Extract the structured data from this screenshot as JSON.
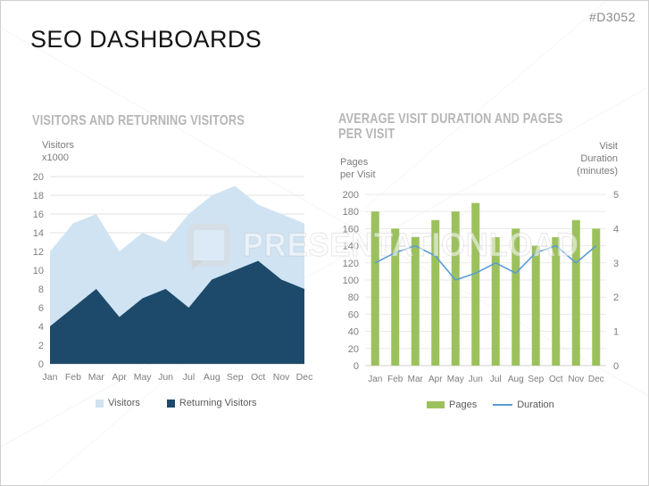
{
  "slide": {
    "code": "#D3052",
    "title": "SEO DASHBOARDS",
    "watermark": "PRESENTATIONLOAD",
    "accent_colors": {
      "light_blue": "#cfe3f3",
      "dark_blue": "#1d4a6a",
      "green": "#9cc15c",
      "line_blue": "#5b9bd5"
    }
  },
  "left_chart": {
    "ylabel_line1": "Visitors",
    "ylabel_line2": "x1000"
  },
  "right_chart": {
    "title_line1": "AVERAGE VISIT DURATION AND PAGES",
    "title_line2": "PER VISIT",
    "ylabel_left_line1": "Pages",
    "ylabel_left_line2": "per Visit",
    "ylabel_right_line1": "Visit",
    "ylabel_right_line2": "Duration",
    "ylabel_right_line3": "(minutes)"
  },
  "chart_data": [
    {
      "type": "area",
      "title": "VISITORS AND RETURNING VISITORS",
      "categories": [
        "Jan",
        "Feb",
        "Mar",
        "Apr",
        "May",
        "Jun",
        "Jul",
        "Aug",
        "Sep",
        "Oct",
        "Nov",
        "Dec"
      ],
      "series": [
        {
          "name": "Visitors",
          "color": "#cfe3f3",
          "values": [
            12,
            15,
            16,
            12,
            14,
            13,
            16,
            18,
            19,
            17,
            16,
            15
          ]
        },
        {
          "name": "Returning Visitors",
          "color": "#1d4a6a",
          "values": [
            4,
            6,
            8,
            5,
            7,
            8,
            6,
            9,
            10,
            11,
            9,
            8
          ]
        }
      ],
      "ylabel": "Visitors x1000",
      "ylim": [
        0,
        20
      ],
      "ytick_step": 2,
      "grid": true,
      "legend_position": "bottom"
    },
    {
      "type": "bar+line",
      "title": "AVERAGE VISIT DURATION AND PAGES PER VISIT",
      "categories": [
        "Jan",
        "Feb",
        "Mar",
        "Apr",
        "May",
        "Jun",
        "Jul",
        "Aug",
        "Sep",
        "Oct",
        "Nov",
        "Dec"
      ],
      "series": [
        {
          "name": "Pages",
          "chart": "bar",
          "axis": "left",
          "color": "#9cc15c",
          "values": [
            180,
            160,
            150,
            170,
            180,
            190,
            150,
            160,
            140,
            150,
            170,
            160
          ]
        },
        {
          "name": "Duration",
          "chart": "line",
          "axis": "right",
          "color": "#5b9bd5",
          "values": [
            3.0,
            3.3,
            3.5,
            3.2,
            2.5,
            2.7,
            3.0,
            2.7,
            3.3,
            3.5,
            3.0,
            3.5
          ]
        }
      ],
      "ylabel_left": "Pages per Visit",
      "ylabel_right": "Visit Duration (minutes)",
      "ylim_left": [
        0,
        200
      ],
      "ytick_step_left": 20,
      "ylim_right": [
        0,
        5
      ],
      "ytick_step_right": 1,
      "grid": true,
      "legend_position": "bottom"
    }
  ]
}
